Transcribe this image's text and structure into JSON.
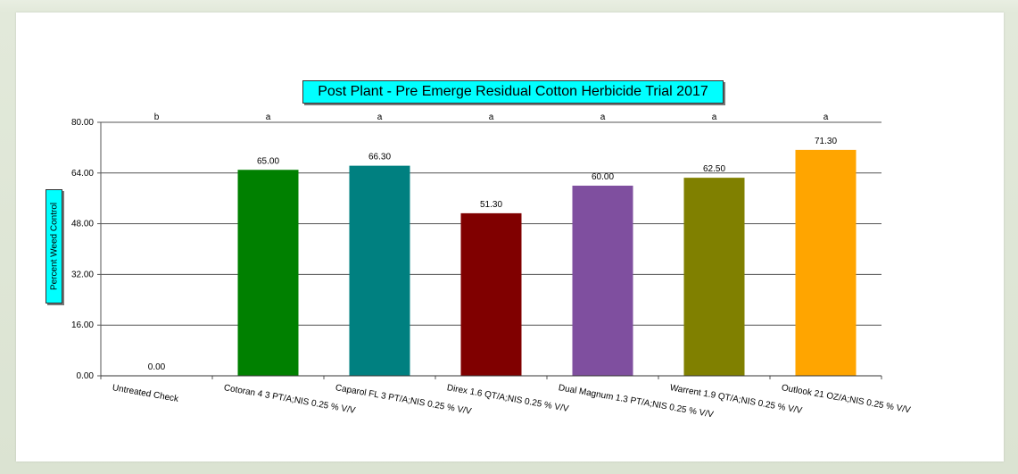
{
  "chart_data": {
    "type": "bar",
    "title": "Post Plant - Pre Emerge Residual Cotton Herbicide Trial 2017",
    "ylabel": "Percent Weed Control",
    "xlabel": "",
    "ylim": [
      0,
      80
    ],
    "yticks": [
      "0.00",
      "16.00",
      "32.00",
      "48.00",
      "64.00",
      "80.00"
    ],
    "grid": true,
    "categories": [
      "Untreated Check",
      "Cotoran 4 3 PT/A;NIS 0.25 % V/V",
      "Caparol FL 3 PT/A;NIS 0.25 % V/V",
      "Direx 1.6 QT/A;NIS 0.25 % V/V",
      "Dual Magnum 1.3 PT/A;NIS 0.25 % V/V",
      "Warrent 1.9 QT/A;NIS 0.25 % V/V",
      "Outlook 21 OZ/A;NIS 0.25 % V/V"
    ],
    "values": [
      0.0,
      65.0,
      66.3,
      51.3,
      60.0,
      62.5,
      71.3
    ],
    "value_labels": [
      "0.00",
      "65.00",
      "66.30",
      "51.30",
      "60.00",
      "62.50",
      "71.30"
    ],
    "significance_letters": [
      "b",
      "a",
      "a",
      "a",
      "a",
      "a",
      "a"
    ],
    "colors": [
      "#c0c0c0",
      "#008000",
      "#008080",
      "#800000",
      "#7f4f9f",
      "#808000",
      "#ffa500"
    ]
  }
}
